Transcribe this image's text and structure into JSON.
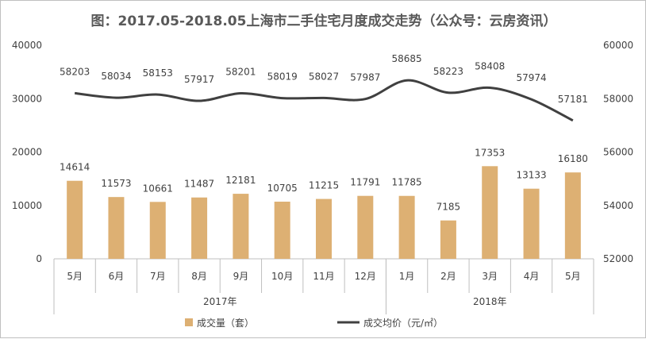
{
  "chart_data": {
    "type": "bar",
    "title": "图：2017.05-2018.05上海市二手住宅月度成交走势（公众号：云房资讯）",
    "categories": [
      "5月",
      "6月",
      "7月",
      "8月",
      "9月",
      "10月",
      "11月",
      "12月",
      "1月",
      "2月",
      "3月",
      "4月",
      "5月"
    ],
    "groups": [
      {
        "label": "2017年",
        "start": 0,
        "end": 7
      },
      {
        "label": "2018年",
        "start": 8,
        "end": 12
      }
    ],
    "series": [
      {
        "name": "成交量（套）",
        "type": "bar",
        "axis": "left",
        "color": "#DDB073",
        "values": [
          14614,
          11573,
          10661,
          11487,
          12181,
          10705,
          11215,
          11791,
          11785,
          7185,
          17353,
          13133,
          16180
        ]
      },
      {
        "name": "成交均价（元/㎡）",
        "type": "line",
        "axis": "right",
        "color": "#404040",
        "values": [
          58203,
          58034,
          58153,
          57917,
          58201,
          58019,
          58027,
          57987,
          58685,
          58223,
          58408,
          57974,
          57181
        ]
      }
    ],
    "y_left": {
      "ylim": [
        0,
        40000
      ],
      "ticks": [
        "0",
        "10000",
        "20000",
        "30000",
        "40000"
      ]
    },
    "y_right": {
      "ylim": [
        52000,
        60000
      ],
      "ticks": [
        "52000",
        "54000",
        "56000",
        "58000",
        "60000"
      ]
    },
    "grid": false,
    "legend_position": "bottom"
  }
}
